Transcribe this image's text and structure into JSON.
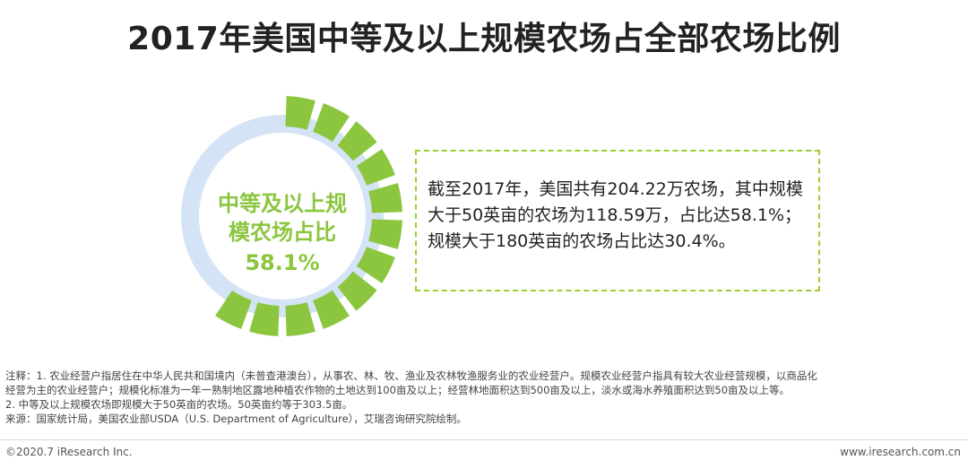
{
  "title": "2017年美国中等及以上规模农场占全部农场比例",
  "chart_data": {
    "type": "pie",
    "style": "segmented-donut",
    "center_label_line1": "中等及以上规",
    "center_label_line2": "模农场占比",
    "center_value_label": "58.1%",
    "segment_count": 20,
    "slices": [
      {
        "value": 58.1,
        "color": "#8cc63f"
      },
      {
        "value": 41.9,
        "color": "#d4e3f5"
      }
    ]
  },
  "callout_text": "截至2017年，美国共有204.22万农场，其中规模大于50英亩的农场为118.59万，占比达58.1%；规模大于180英亩的农场占比达30.4%。",
  "notes": {
    "line1": "注释：1. 农业经营户指居住在中华人民共和国境内（未普查港澳台），从事农、林、牧、渔业及农林牧渔服务业的农业经营户。规模农业经营户指具有较大农业经营规模，以商品化",
    "line2": "经营为主的农业经营户；规模化标准为一年一熟制地区露地种植农作物的土地达到100亩及以上；经营林地面积达到500亩及以上，淡水或海水养殖面积达到50亩及以上等。",
    "line3": "2. 中等及以上规模农场即规模大于50英亩的农场。50英亩约等于303.5亩。",
    "line4": "来源：国家统计局，美国农业部USDA（U.S. Department of Agriculture），艾瑞咨询研究院绘制。"
  },
  "footer": {
    "copyright": "©2020.7 iResearch Inc.",
    "website": "www.iresearch.com.cn"
  }
}
